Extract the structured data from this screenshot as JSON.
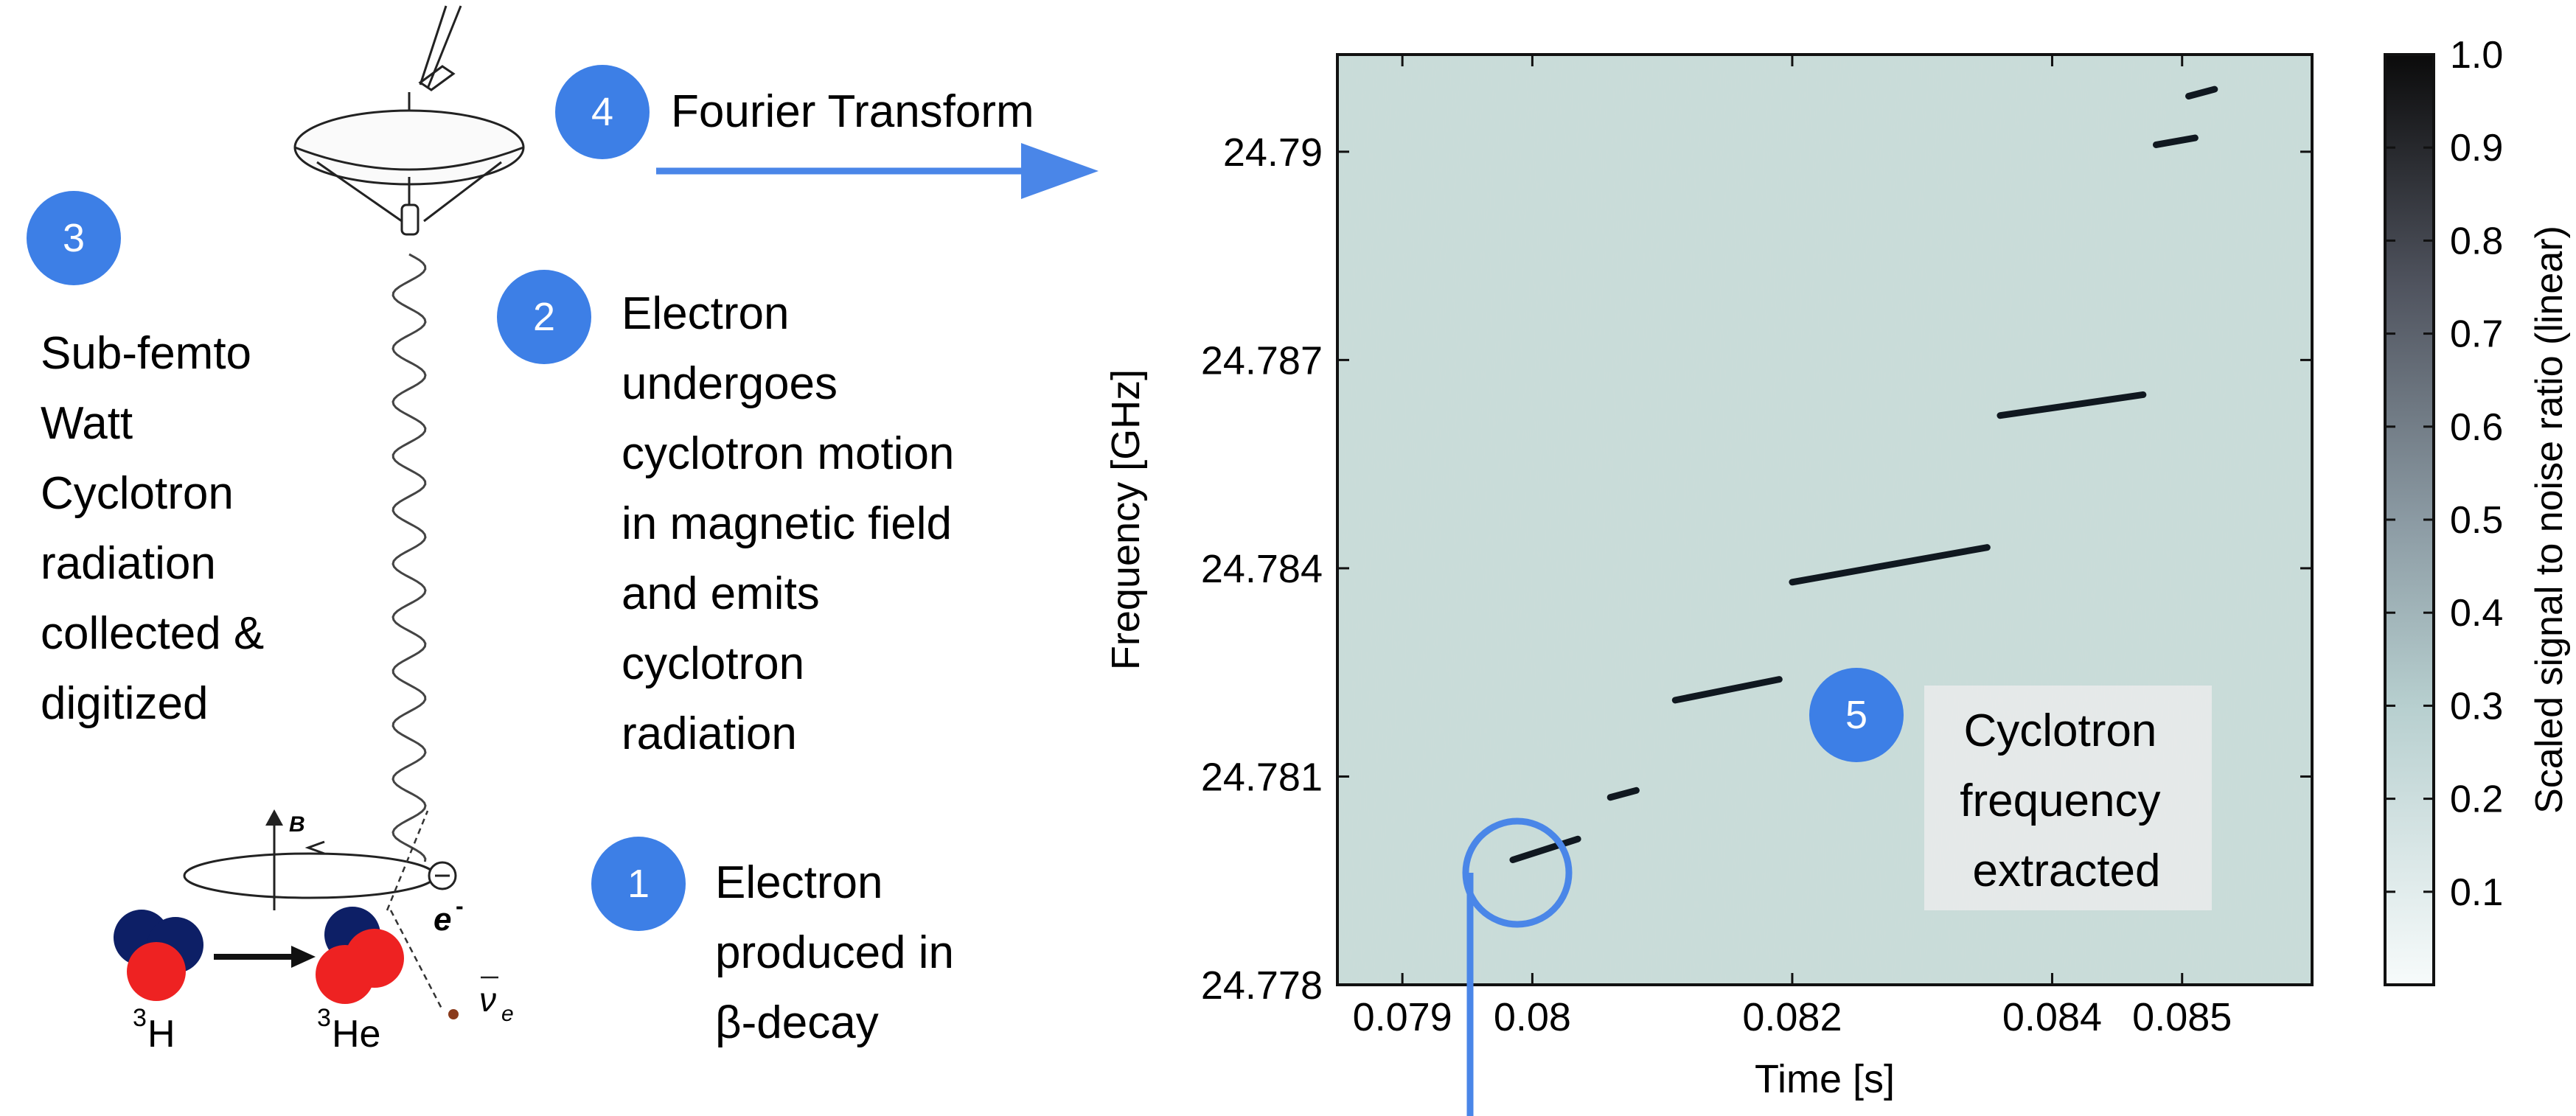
{
  "steps": [
    {
      "num": "1",
      "lines": [
        "Electron",
        "produced in",
        "β-decay"
      ]
    },
    {
      "num": "2",
      "lines": [
        "Electron",
        "undergoes",
        "cyclotron motion",
        "in magnetic field",
        "and emits",
        "cyclotron",
        "radiation"
      ]
    },
    {
      "num": "3",
      "lines": [
        "Sub-femto",
        "Watt",
        "Cyclotron",
        "radiation",
        "collected &",
        "digitized"
      ]
    },
    {
      "num": "4",
      "lines": [
        "Fourier Transform"
      ]
    },
    {
      "num": "5",
      "lines": [
        "Cyclotron",
        "frequency",
        "extracted"
      ]
    }
  ],
  "decay": {
    "parent": "H",
    "parent_mass": "3",
    "daughter": "He",
    "daughter_mass": "3",
    "field": "B",
    "electron": "e",
    "electron_charge": "-",
    "neutrino": "ν",
    "neutrino_sub": "e"
  },
  "colors": {
    "badge": "#3d7fe6",
    "arrow": "#4a86e8",
    "waterfall": "#c9dcd9",
    "nucleus_red": "#ee2222",
    "nucleus_blue": "#0d1f66"
  },
  "chart_data": {
    "type": "heatmap",
    "xlabel": "Time [s]",
    "ylabel": "Frequency [GHz]",
    "xlim": [
      0.0785,
      0.086
    ],
    "ylim": [
      24.778,
      24.7914
    ],
    "xticks": [
      0.079,
      0.08,
      0.082,
      0.084,
      0.085
    ],
    "xtick_labels": [
      "0.079",
      "0.08",
      "0.082",
      "0.084",
      "0.085"
    ],
    "yticks": [
      24.778,
      24.781,
      24.784,
      24.787,
      24.79
    ],
    "ytick_labels": [
      "24.778",
      "24.781",
      "24.784",
      "24.787",
      "24.79"
    ],
    "colorbar": {
      "label": "Scaled signal to noise ratio (linear)",
      "range": [
        0,
        1.0
      ],
      "ticks": [
        0.1,
        0.2,
        0.3,
        0.4,
        0.5,
        0.6,
        0.7,
        0.8,
        0.9,
        1.0
      ],
      "tick_labels": [
        "0.1",
        "0.2",
        "0.3",
        "0.4",
        "0.5",
        "0.6",
        "0.7",
        "0.8",
        "0.9",
        "1.0"
      ]
    },
    "tracks": [
      {
        "x": [
          0.07985,
          0.08035
        ],
        "y": [
          24.7798,
          24.7801
        ]
      },
      {
        "x": [
          0.0806,
          0.0808
        ],
        "y": [
          24.7807,
          24.7808
        ]
      },
      {
        "x": [
          0.0811,
          0.0819
        ],
        "y": [
          24.7821,
          24.7824
        ]
      },
      {
        "x": [
          0.082,
          0.0835
        ],
        "y": [
          24.7838,
          24.7843
        ]
      },
      {
        "x": [
          0.0836,
          0.0847
        ],
        "y": [
          24.7862,
          24.7865
        ]
      },
      {
        "x": [
          0.0848,
          0.0851
        ],
        "y": [
          24.7901,
          24.7902
        ]
      },
      {
        "x": [
          0.08505,
          0.08525
        ],
        "y": [
          24.7908,
          24.7909
        ]
      }
    ]
  }
}
